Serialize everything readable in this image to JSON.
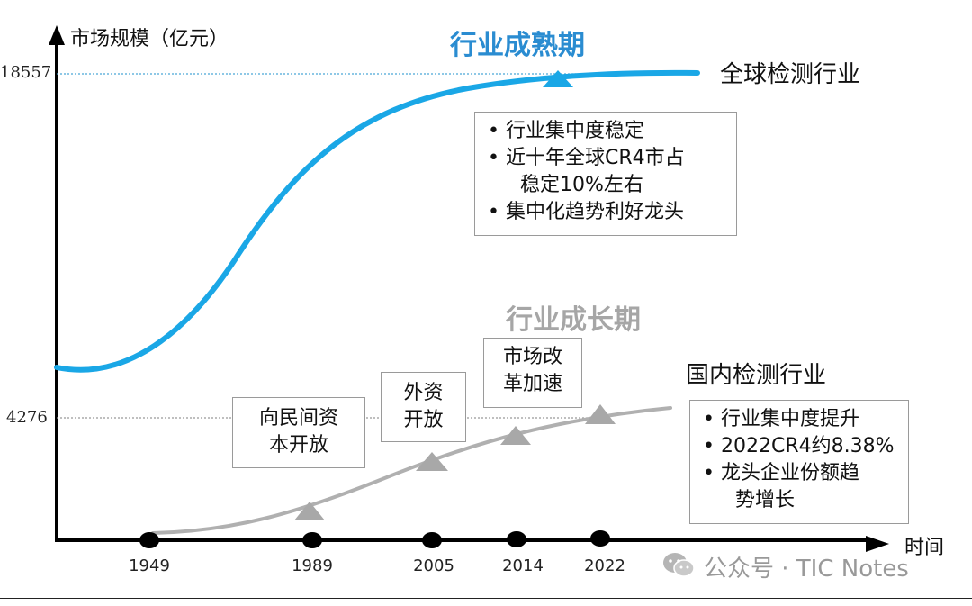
{
  "axes": {
    "y_label": "市场规模（亿元）",
    "x_label": "时间",
    "y_ticks": [
      "18557",
      "4276"
    ],
    "x_ticks": [
      "1949",
      "1989",
      "2005",
      "2014",
      "2022"
    ]
  },
  "global": {
    "phase_title": "行业成熟期",
    "series_name": "全球检测行业",
    "color": "#1aa7e6",
    "bullets": [
      "行业集中度稳定",
      "近十年全球CR4市占",
      "稳定10%左右",
      "集中化趋势利好龙头"
    ]
  },
  "domestic": {
    "phase_title": "行业成长期",
    "series_name": "国内检测行业",
    "color": "#b0b0b0",
    "bullets": [
      "行业集中度提升",
      "2022CR4约8.38%",
      "龙头企业份额趋",
      "势增长"
    ],
    "milestones": [
      {
        "line1": "向民间资",
        "line2": "本开放"
      },
      {
        "line1": "外资",
        "line2": "开放"
      },
      {
        "line1": "市场改",
        "line2": "革加速"
      }
    ]
  },
  "watermark": "公众号 · TIC Notes"
}
